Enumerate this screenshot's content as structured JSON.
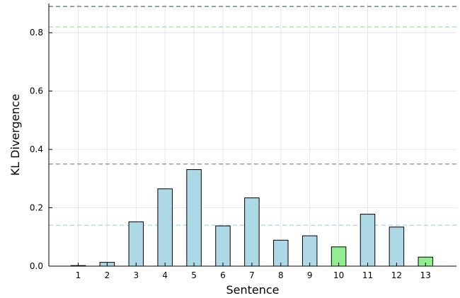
{
  "chart_data": {
    "type": "bar",
    "categories": [
      "1",
      "2",
      "3",
      "4",
      "5",
      "6",
      "7",
      "8",
      "9",
      "10",
      "11",
      "12",
      "13"
    ],
    "values": [
      0.002,
      0.013,
      0.152,
      0.265,
      0.331,
      0.138,
      0.234,
      0.089,
      0.104,
      0.066,
      0.178,
      0.134,
      0.031
    ],
    "bar_colors": [
      "#add8e6",
      "#add8e6",
      "#add8e6",
      "#add8e6",
      "#add8e6",
      "#add8e6",
      "#add8e6",
      "#add8e6",
      "#add8e6",
      "#90ee90",
      "#add8e6",
      "#add8e6",
      "#90ee90"
    ],
    "title": "",
    "xlabel": "Sentence",
    "ylabel": "KL Divergence",
    "ylim": [
      0,
      0.9
    ],
    "yticks": [
      {
        "value": 0.0,
        "label": "0.0"
      },
      {
        "value": 0.2,
        "label": "0.2"
      },
      {
        "value": 0.4,
        "label": "0.4"
      },
      {
        "value": 0.6,
        "label": "0.6"
      },
      {
        "value": 0.8,
        "label": "0.8"
      }
    ],
    "reference_lines": [
      {
        "value": 0.89,
        "color": "#3a8a3a"
      },
      {
        "value": 0.82,
        "color": "#90ee90"
      },
      {
        "value": 0.35,
        "color": "#8a8a8a"
      },
      {
        "value": 0.14,
        "color": "#add8e6"
      }
    ],
    "grid": true,
    "legend": "none"
  }
}
